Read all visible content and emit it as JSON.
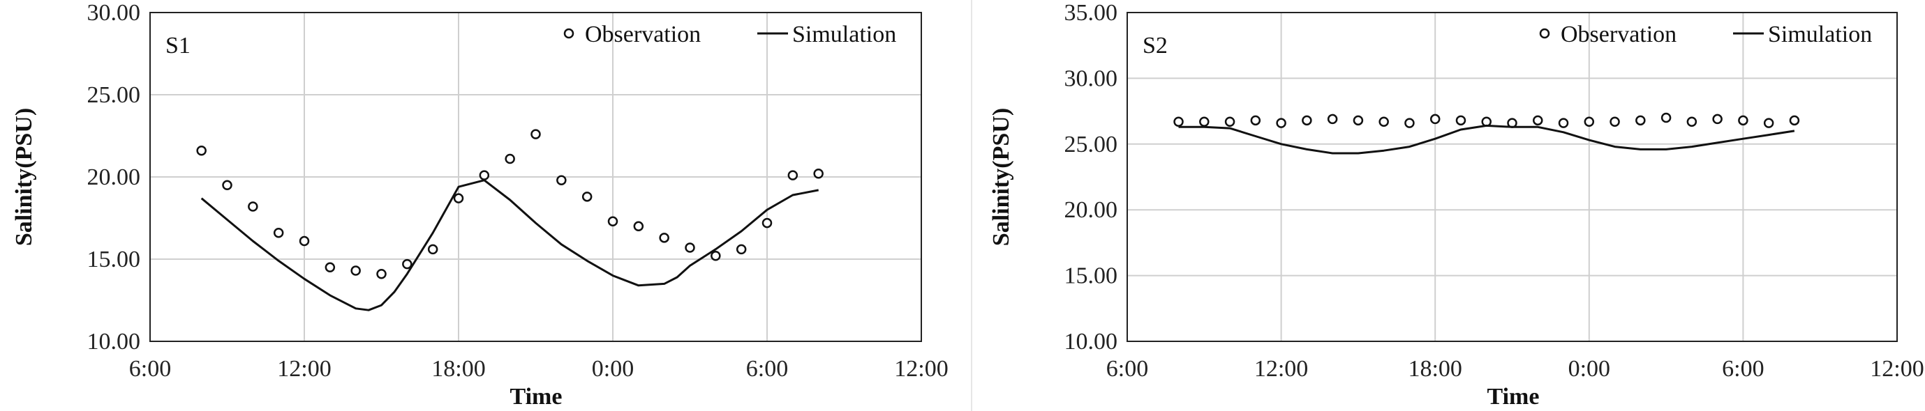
{
  "chart_data": [
    {
      "type": "line",
      "panel_label": "S1",
      "xlabel": "Time",
      "ylabel": "Salinity(PSU)",
      "x_tick_labels": [
        "6:00",
        "12:00",
        "18:00",
        "0:00",
        "6:00",
        "12:00"
      ],
      "x_tick_hours": [
        0,
        6,
        12,
        18,
        24,
        30
      ],
      "xlim_hours": [
        0,
        30
      ],
      "ylim": [
        10,
        30
      ],
      "y_ticks": [
        "10.00",
        "15.00",
        "20.00",
        "25.00",
        "30.00"
      ],
      "grid": true,
      "legend_position": "top-right",
      "series": [
        {
          "name": "Observation",
          "style": "markers",
          "x_hours": [
            2,
            3,
            4,
            5,
            6,
            7,
            8,
            9,
            10,
            11,
            12,
            13,
            14,
            15,
            16,
            17,
            18,
            19,
            20,
            21,
            22,
            23,
            24,
            25,
            26
          ],
          "values": [
            21.6,
            19.5,
            18.2,
            16.6,
            16.1,
            14.5,
            14.3,
            14.1,
            14.7,
            15.6,
            18.7,
            20.1,
            21.1,
            22.6,
            19.8,
            18.8,
            17.3,
            17.0,
            16.3,
            15.7,
            15.2,
            15.6,
            17.2,
            20.1,
            20.2
          ]
        },
        {
          "name": "Simulation",
          "style": "line",
          "x_hours": [
            2,
            3,
            4,
            5,
            6,
            7,
            8,
            8.5,
            9,
            9.5,
            10,
            11,
            12,
            13,
            14,
            15,
            16,
            17,
            18,
            19,
            20,
            20.5,
            21,
            21.5,
            22,
            23,
            24,
            25,
            26
          ],
          "values": [
            18.7,
            17.4,
            16.1,
            14.9,
            13.8,
            12.8,
            12.0,
            11.9,
            12.2,
            13.0,
            14.1,
            16.6,
            19.4,
            19.8,
            18.6,
            17.2,
            15.9,
            14.9,
            14.0,
            13.4,
            13.5,
            13.9,
            14.6,
            15.1,
            15.6,
            16.7,
            18.0,
            18.9,
            19.2
          ]
        }
      ]
    },
    {
      "type": "line",
      "panel_label": "S2",
      "xlabel": "Time",
      "ylabel": "Salinity(PSU)",
      "x_tick_labels": [
        "6:00",
        "12:00",
        "18:00",
        "0:00",
        "6:00",
        "12:00"
      ],
      "x_tick_hours": [
        0,
        6,
        12,
        18,
        24,
        30
      ],
      "xlim_hours": [
        0,
        30
      ],
      "ylim": [
        10,
        35
      ],
      "y_ticks": [
        "10.00",
        "15.00",
        "20.00",
        "25.00",
        "30.00",
        "35.00"
      ],
      "grid": true,
      "legend_position": "top-right",
      "series": [
        {
          "name": "Observation",
          "style": "markers",
          "x_hours": [
            2,
            3,
            4,
            5,
            6,
            7,
            8,
            9,
            10,
            11,
            12,
            13,
            14,
            15,
            16,
            17,
            18,
            19,
            20,
            21,
            22,
            23,
            24,
            25,
            26
          ],
          "values": [
            26.7,
            26.7,
            26.7,
            26.8,
            26.6,
            26.8,
            26.9,
            26.8,
            26.7,
            26.6,
            26.9,
            26.8,
            26.7,
            26.6,
            26.8,
            26.6,
            26.7,
            26.7,
            26.8,
            27.0,
            26.7,
            26.9,
            26.8,
            26.6,
            26.8
          ]
        },
        {
          "name": "Simulation",
          "style": "line",
          "x_hours": [
            2,
            3,
            4,
            5,
            6,
            7,
            8,
            9,
            10,
            11,
            12,
            13,
            14,
            15,
            16,
            17,
            18,
            19,
            20,
            21,
            22,
            23,
            24,
            25,
            26
          ],
          "values": [
            26.3,
            26.3,
            26.2,
            25.6,
            25.0,
            24.6,
            24.3,
            24.3,
            24.5,
            24.8,
            25.4,
            26.1,
            26.4,
            26.3,
            26.3,
            25.9,
            25.3,
            24.8,
            24.6,
            24.6,
            24.8,
            25.1,
            25.4,
            25.7,
            26.0
          ]
        }
      ]
    }
  ]
}
